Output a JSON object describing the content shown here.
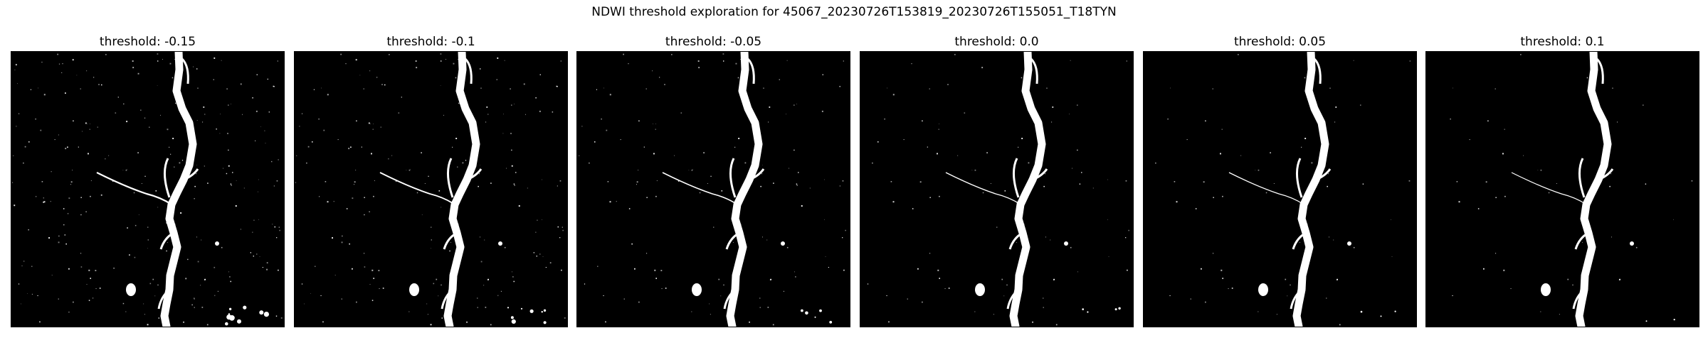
{
  "figure": {
    "title": "NDWI threshold exploration for 45067_20230726T153819_20230726T155051_T18TYN"
  },
  "panels": [
    {
      "title": "threshold: -0.15",
      "threshold": -0.15
    },
    {
      "title": "threshold: -0.1",
      "threshold": -0.1
    },
    {
      "title": "threshold: -0.05",
      "threshold": -0.05
    },
    {
      "title": "threshold: 0.0",
      "threshold": 0.0
    },
    {
      "title": "threshold: 0.05",
      "threshold": 0.05
    },
    {
      "title": "threshold: 0.1",
      "threshold": 0.1
    }
  ],
  "colors": {
    "water": "#ffffff",
    "land": "#000000"
  }
}
